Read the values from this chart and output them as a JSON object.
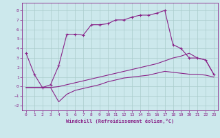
{
  "xlabel": "Windchill (Refroidissement éolien,°C)",
  "background_color": "#cce8ec",
  "grid_color": "#aacccc",
  "line_color": "#882288",
  "spine_color": "#882288",
  "xmin": -0.5,
  "xmax": 23.5,
  "ymin": -2.5,
  "ymax": 8.8,
  "xticks": [
    0,
    1,
    2,
    3,
    4,
    5,
    6,
    7,
    8,
    9,
    10,
    11,
    12,
    13,
    14,
    15,
    16,
    17,
    18,
    19,
    20,
    21,
    22,
    23
  ],
  "yticks": [
    -2,
    -1,
    0,
    1,
    2,
    3,
    4,
    5,
    6,
    7,
    8
  ],
  "curve1_x": [
    0,
    1,
    2,
    3,
    4,
    5,
    6,
    7,
    8,
    9,
    10,
    11,
    12,
    13,
    14,
    15,
    16,
    17,
    18,
    19,
    20,
    21,
    22,
    23
  ],
  "curve1_y": [
    3.5,
    1.3,
    -0.1,
    0.2,
    2.2,
    5.5,
    5.5,
    5.4,
    6.5,
    6.5,
    6.6,
    7.0,
    7.0,
    7.3,
    7.5,
    7.5,
    7.7,
    8.0,
    4.4,
    4.0,
    3.0,
    3.0,
    2.8,
    1.3
  ],
  "curve2_x": [
    0,
    3,
    4,
    5,
    6,
    7,
    8,
    9,
    10,
    11,
    12,
    13,
    14,
    15,
    16,
    17,
    18,
    19,
    20,
    21,
    22,
    23
  ],
  "curve2_y": [
    -0.1,
    -0.1,
    0.0,
    0.2,
    0.4,
    0.6,
    0.8,
    1.0,
    1.2,
    1.4,
    1.6,
    1.8,
    2.0,
    2.2,
    2.4,
    2.7,
    3.0,
    3.2,
    3.5,
    3.0,
    2.8,
    1.3
  ],
  "curve3_x": [
    0,
    3,
    4,
    5,
    6,
    7,
    8,
    9,
    10,
    11,
    12,
    13,
    14,
    15,
    16,
    17,
    18,
    19,
    20,
    21,
    22,
    23
  ],
  "curve3_y": [
    -0.1,
    -0.1,
    -1.6,
    -0.8,
    -0.4,
    -0.2,
    0.0,
    0.2,
    0.5,
    0.7,
    0.9,
    1.0,
    1.1,
    1.2,
    1.4,
    1.6,
    1.5,
    1.4,
    1.3,
    1.3,
    1.2,
    1.0
  ]
}
